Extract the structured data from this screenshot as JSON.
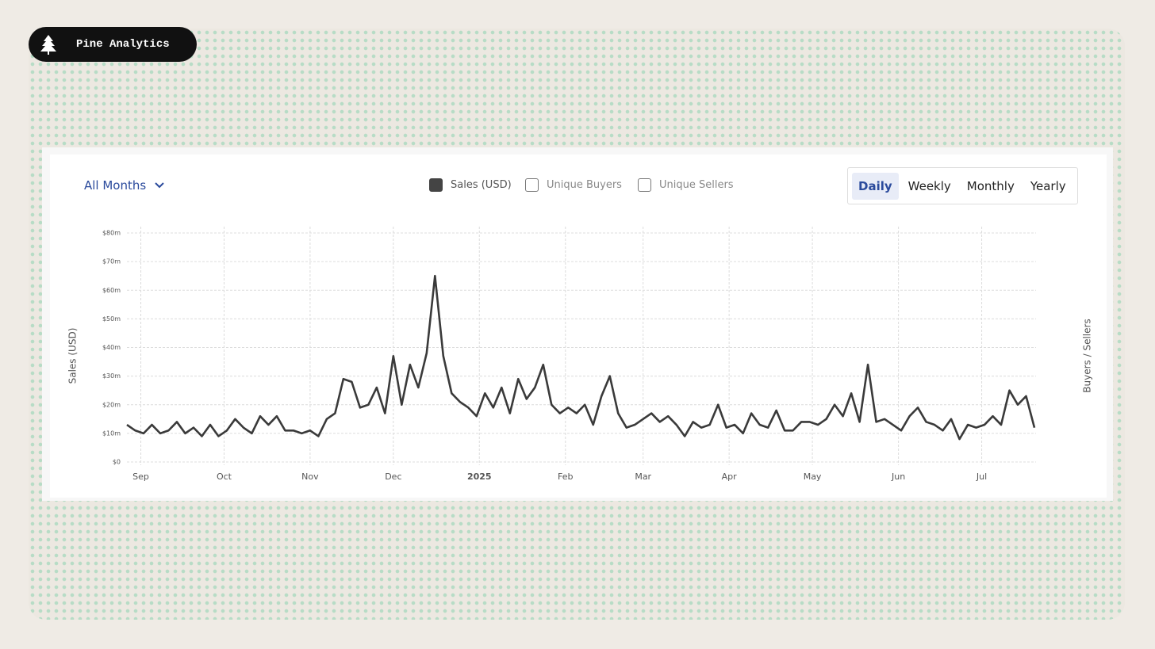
{
  "brand": "Pine Analytics",
  "controls": {
    "range": "All Months",
    "toggles": [
      "Unique Buyers",
      "Unique Sellers"
    ],
    "periods": [
      "Daily",
      "Weekly",
      "Monthly",
      "Yearly"
    ],
    "active_period": "Daily"
  },
  "chart_data": {
    "type": "line",
    "y_label": "Sales (USD)",
    "y2_label": "Buyers / Sellers",
    "series": [
      {
        "name": "Sales (USD)",
        "color": "#3a3a3a",
        "values": [
          13,
          11,
          10,
          13,
          10,
          11,
          14,
          10,
          12,
          9,
          13,
          9,
          11,
          15,
          12,
          10,
          16,
          13,
          16,
          11,
          11,
          10,
          11,
          9,
          15,
          17,
          29,
          28,
          19,
          20,
          26,
          17,
          37,
          20,
          34,
          26,
          38,
          65,
          37,
          24,
          21,
          19,
          16,
          24,
          19,
          26,
          17,
          29,
          22,
          26,
          34,
          20,
          17,
          19,
          17,
          20,
          13,
          23,
          30,
          17,
          12,
          13,
          15,
          17,
          14,
          16,
          13,
          9,
          14,
          12,
          13,
          20,
          12,
          13,
          10,
          17,
          13,
          12,
          18,
          11,
          11,
          14,
          14,
          13,
          15,
          20,
          16,
          24,
          14,
          34,
          14,
          15,
          13,
          11,
          16,
          19,
          14,
          13,
          11,
          15,
          8,
          13,
          12,
          13,
          16,
          13,
          25,
          20,
          23,
          12
        ]
      }
    ],
    "xlim": [
      0,
      109
    ],
    "xticks": [
      {
        "value": 1.67,
        "label": "Sep"
      },
      {
        "value": 11.67,
        "label": "Oct"
      },
      {
        "value": 22,
        "label": "Nov"
      },
      {
        "value": 32,
        "label": "Dec"
      },
      {
        "value": 42.33,
        "label": "2025"
      },
      {
        "value": 52.67,
        "label": "Feb"
      },
      {
        "value": 62,
        "label": "Mar"
      },
      {
        "value": 72.33,
        "label": "Apr"
      },
      {
        "value": 82.33,
        "label": "May"
      },
      {
        "value": 92.67,
        "label": "Jun"
      },
      {
        "value": 102.67,
        "label": "Jul"
      }
    ],
    "ylim": [
      0,
      80
    ],
    "yticks": [
      {
        "value": 0,
        "label": "$0"
      },
      {
        "value": 10,
        "label": "$10m"
      },
      {
        "value": 20,
        "label": "$20m"
      },
      {
        "value": 30,
        "label": "$30m"
      },
      {
        "value": 40,
        "label": "$40m"
      },
      {
        "value": 50,
        "label": "$50m"
      },
      {
        "value": 60,
        "label": "$60m"
      },
      {
        "value": 70,
        "label": "$70m"
      },
      {
        "value": 80,
        "label": "$80m"
      }
    ],
    "grid": true
  }
}
